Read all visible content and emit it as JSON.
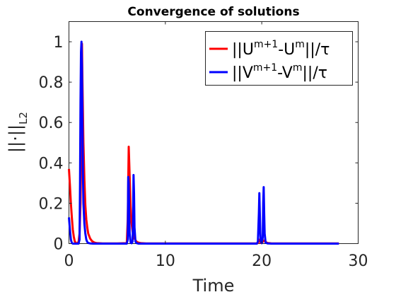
{
  "chart_data": {
    "type": "line",
    "title": "Convergence of solutions",
    "xlabel": "Time",
    "ylabel": "||·||",
    "ylabel_sub": "L2",
    "xlim": [
      0,
      30
    ],
    "ylim": [
      0,
      1.1
    ],
    "x_ticks": [
      0,
      10,
      20,
      30
    ],
    "x_tick_labels": [
      "0",
      "10",
      "20",
      "30"
    ],
    "y_ticks": [
      0,
      0.2,
      0.4,
      0.6,
      0.8,
      1
    ],
    "y_tick_labels": [
      "0",
      "0.2",
      "0.4",
      "0.6",
      "0.8",
      "1"
    ],
    "grid": false,
    "legend_position": "top-right",
    "series": [
      {
        "name": "||U^{m+1}-U^m||/τ",
        "legend_parts": {
          "a": "||U",
          "sup1": "m+1",
          "b": "-U",
          "sup2": "m",
          "c": "||/τ"
        },
        "color": "#ff0000",
        "x": [
          0,
          0.1,
          0.2,
          0.3,
          0.4,
          0.5,
          0.6,
          0.7,
          0.8,
          0.9,
          1.0,
          1.1,
          1.2,
          1.3,
          1.35,
          1.4,
          1.5,
          1.6,
          1.7,
          1.8,
          1.9,
          2.0,
          2.2,
          2.4,
          2.6,
          2.8,
          3.0,
          3.5,
          4.0,
          5.0,
          6.0,
          6.1,
          6.2,
          6.3,
          6.4,
          6.5,
          6.6,
          6.7,
          6.8,
          7.0,
          7.2,
          7.5,
          8.0,
          10.0,
          15.0,
          19.5,
          19.6,
          19.7,
          19.8,
          19.9,
          20.0,
          20.2,
          20.4,
          20.6,
          21.0,
          22.0,
          25.0,
          28.0
        ],
        "y": [
          0.37,
          0.29,
          0.2,
          0.13,
          0.07,
          0.035,
          0.012,
          0.004,
          0.002,
          0.002,
          0.01,
          0.05,
          0.2,
          0.55,
          0.99,
          0.8,
          0.5,
          0.32,
          0.19,
          0.12,
          0.08,
          0.05,
          0.025,
          0.012,
          0.006,
          0.003,
          0.002,
          0.001,
          0.001,
          0.001,
          0.002,
          0.12,
          0.48,
          0.33,
          0.18,
          0.1,
          0.06,
          0.04,
          0.025,
          0.01,
          0.005,
          0.002,
          0.001,
          0.001,
          0.001,
          0.001,
          0.003,
          0.02,
          0.01,
          0.004,
          0.003,
          0.015,
          0.008,
          0.003,
          0.001,
          0.001,
          0.001,
          0.001
        ]
      },
      {
        "name": "||V^{m+1}-V^m||/τ",
        "legend_parts": {
          "a": "||V",
          "sup1": "m+1",
          "b": "-V",
          "sup2": "m",
          "c": "||/τ"
        },
        "color": "#0000ff",
        "x": [
          0,
          0.1,
          0.2,
          0.3,
          0.4,
          0.6,
          0.8,
          1.0,
          1.1,
          1.15,
          1.2,
          1.25,
          1.3,
          1.35,
          1.4,
          1.45,
          1.5,
          1.6,
          1.7,
          1.8,
          1.9,
          2.0,
          2.2,
          2.5,
          3.0,
          4.0,
          5.0,
          6.0,
          6.1,
          6.15,
          6.2,
          6.25,
          6.3,
          6.4,
          6.5,
          6.6,
          6.65,
          6.7,
          6.75,
          6.8,
          6.9,
          7.0,
          7.2,
          8.0,
          10.0,
          15.0,
          19.5,
          19.6,
          19.7,
          19.75,
          19.8,
          19.85,
          19.9,
          20.0,
          20.1,
          20.15,
          20.2,
          20.25,
          20.3,
          20.4,
          20.6,
          21.0,
          25.0,
          28.0
        ],
        "y": [
          0.13,
          0.07,
          0.02,
          0.003,
          0.0,
          0.0,
          0.0,
          0.0,
          0.02,
          0.3,
          0.7,
          0.95,
          1.0,
          0.88,
          0.6,
          0.35,
          0.2,
          0.1,
          0.05,
          0.02,
          0.008,
          0.003,
          0.001,
          0.0,
          0.0,
          0.0,
          0.0,
          0.0,
          0.02,
          0.33,
          0.3,
          0.15,
          0.05,
          0.005,
          0.002,
          0.01,
          0.12,
          0.34,
          0.25,
          0.08,
          0.01,
          0.003,
          0.0,
          0.0,
          0.0,
          0.0,
          0.0,
          0.01,
          0.15,
          0.25,
          0.15,
          0.05,
          0.01,
          0.002,
          0.03,
          0.2,
          0.28,
          0.15,
          0.05,
          0.005,
          0.001,
          0.0,
          0.0,
          0.0
        ]
      }
    ]
  }
}
